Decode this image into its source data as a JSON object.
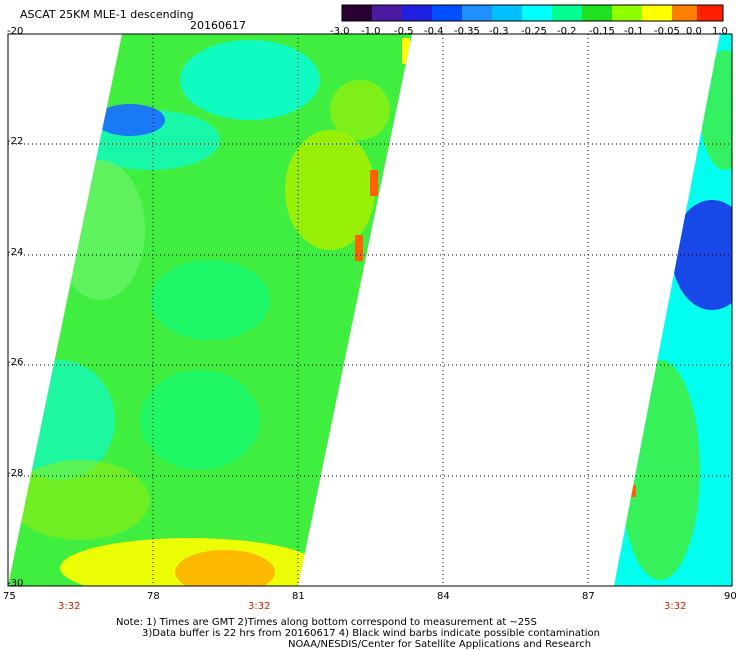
{
  "header": {
    "title": "ASCAT 25KM MLE-1 descending",
    "date": "20160617"
  },
  "colorbar": {
    "labels": [
      "-3.0",
      "-1.0",
      "-0.5",
      "-0.4",
      "-0.35",
      "-0.3",
      "-0.25",
      "-0.2",
      "-0.15",
      "-0.1",
      "-0.05",
      "0.0",
      "1.0"
    ],
    "colors": [
      "#2a0034",
      "#4a1aa0",
      "#2020e0",
      "#0050ff",
      "#1e90ff",
      "#00c0ff",
      "#00ffff",
      "#00ff90",
      "#20e020",
      "#90ff00",
      "#ffff00",
      "#ff8000",
      "#ff2000"
    ]
  },
  "map": {
    "lat_labels": [
      "-20",
      "-22",
      "-24",
      "-26",
      "-28",
      "-30"
    ],
    "lon_labels": [
      "75",
      "78",
      "81",
      "84",
      "87",
      "90"
    ],
    "time_labels": [
      "3:32",
      "3:32",
      "3:32"
    ],
    "swath_colors": {
      "green": "#40ee40",
      "light_green": "#66f266",
      "cyan": "#00ffee",
      "aqua_green": "#00ff88",
      "yellow_green": "#a8f000",
      "yellow": "#ffff00",
      "orange": "#ffb000",
      "red_orange": "#ff6000",
      "blue": "#1a6cff",
      "deep_blue": "#1848e8"
    }
  },
  "notes": {
    "line1": "Note: 1) Times are GMT 2)Times along bottom correspond to measurement at ~25S",
    "line2": "3)Data buffer is 22 hrs from 20160617 4) Black wind barbs indicate possible contamination",
    "line3": "NOAA/NESDIS/Center for Satellite Applications and Research"
  }
}
